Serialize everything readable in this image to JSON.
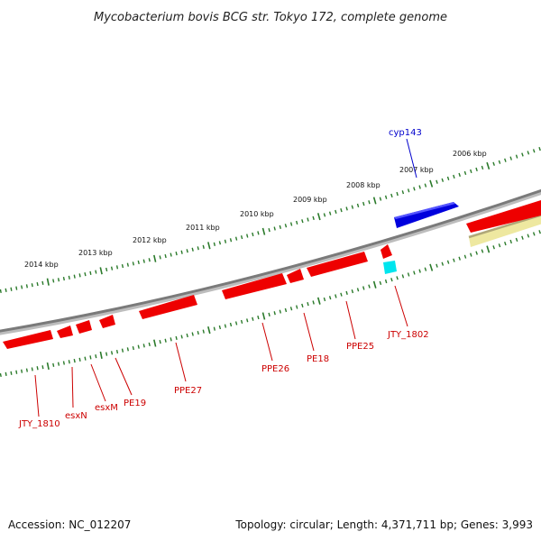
{
  "title": "Mycobacterium bovis BCG str. Tokyo 172, complete genome",
  "footer": {
    "accession": "Accession: NC_012207",
    "topology": "Topology: circular; Length: 4,371,711 bp; Genes: 3,993"
  },
  "colors": {
    "backbone": "#808080",
    "tick": "#2a7a2a",
    "gene": "#ee0000",
    "gene_label": "#cc0000",
    "highlight_gene": "#0000dd",
    "highlight_label": "#0000cc",
    "cyan_feature": "#00e5ee",
    "pale_feature": "#eee8a0"
  },
  "kbp_labels": [
    "2006 kbp",
    "2007 kbp",
    "2008 kbp",
    "2009 kbp",
    "2010 kbp",
    "2011 kbp",
    "2012 kbp",
    "2013 kbp",
    "2014 kbp"
  ],
  "gene_labels": [
    "cyp143",
    "JTY_1802",
    "PPE25",
    "PE18",
    "PPE26",
    "PPE27",
    "PE19",
    "esxM",
    "esxN",
    "JTY_1810"
  ]
}
